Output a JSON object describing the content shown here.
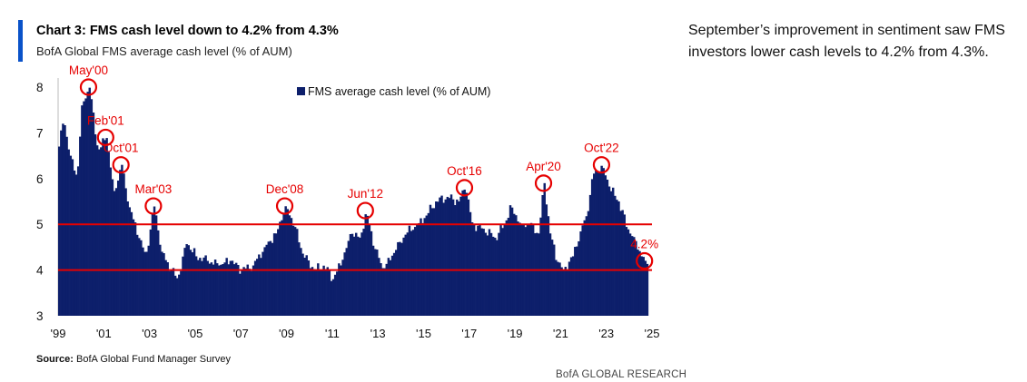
{
  "header": {
    "title": "Chart 3: FMS cash level down to 4.2% from 4.3%",
    "subtitle": "BofA Global FMS average cash level (% of AUM)"
  },
  "side_note": "September’s improvement in sentiment saw FMS investors lower cash levels to 4.2% from 4.3%.",
  "source": {
    "label": "Source:",
    "text": " BofA Global Fund Manager Survey"
  },
  "footer": "BofA GLOBAL RESEARCH",
  "colors": {
    "bars": "#0d1f6b",
    "lines": "#e60000",
    "accent": "#0a52c9"
  },
  "chart_data": {
    "type": "bar",
    "legend": {
      "label": "FMS average cash level (% of AUM)",
      "position": "top-center"
    },
    "xlabel": "",
    "ylabel": "",
    "ylim": [
      3,
      8
    ],
    "xlim": [
      1999.0,
      2024.75
    ],
    "y_ticks": [
      "3",
      "4",
      "5",
      "6",
      "7",
      "8"
    ],
    "x_ticks": [
      {
        "label": "'99",
        "x": 1999
      },
      {
        "label": "'01",
        "x": 2001
      },
      {
        "label": "'03",
        "x": 2003
      },
      {
        "label": "'05",
        "x": 2005
      },
      {
        "label": "'07",
        "x": 2007
      },
      {
        "label": "'09",
        "x": 2009
      },
      {
        "label": "'11",
        "x": 2011
      },
      {
        "label": "'13",
        "x": 2013
      },
      {
        "label": "'15",
        "x": 2015
      },
      {
        "label": "'17",
        "x": 2017
      },
      {
        "label": "'19",
        "x": 2019
      },
      {
        "label": "'21",
        "x": 2021
      },
      {
        "label": "'23",
        "x": 2023
      },
      {
        "label": "'25",
        "x": 2025
      }
    ],
    "reference_lines": [
      5.0,
      4.0
    ],
    "keypoints": [
      [
        1999.0,
        6.7
      ],
      [
        1999.2,
        7.3
      ],
      [
        1999.5,
        6.5
      ],
      [
        1999.8,
        6.0
      ],
      [
        2000.0,
        7.6
      ],
      [
        2000.33,
        8.0
      ],
      [
        2000.7,
        6.6
      ],
      [
        2001.08,
        6.9
      ],
      [
        2001.4,
        5.7
      ],
      [
        2001.75,
        6.3
      ],
      [
        2002.0,
        5.5
      ],
      [
        2002.5,
        4.7
      ],
      [
        2002.8,
        4.3
      ],
      [
        2003.17,
        5.4
      ],
      [
        2003.5,
        4.4
      ],
      [
        2003.9,
        4.0
      ],
      [
        2004.2,
        3.8
      ],
      [
        2004.6,
        4.6
      ],
      [
        2005.0,
        4.3
      ],
      [
        2005.5,
        4.2
      ],
      [
        2006.0,
        4.1
      ],
      [
        2006.5,
        4.2
      ],
      [
        2007.0,
        4.0
      ],
      [
        2007.5,
        4.1
      ],
      [
        2008.0,
        4.5
      ],
      [
        2008.5,
        4.8
      ],
      [
        2008.92,
        5.4
      ],
      [
        2009.3,
        5.0
      ],
      [
        2009.7,
        4.3
      ],
      [
        2010.2,
        4.0
      ],
      [
        2010.6,
        4.1
      ],
      [
        2011.0,
        3.8
      ],
      [
        2011.4,
        4.2
      ],
      [
        2011.8,
        4.8
      ],
      [
        2012.2,
        4.7
      ],
      [
        2012.45,
        5.3
      ],
      [
        2012.8,
        4.5
      ],
      [
        2013.2,
        4.0
      ],
      [
        2013.7,
        4.4
      ],
      [
        2014.2,
        4.8
      ],
      [
        2014.7,
        5.0
      ],
      [
        2015.1,
        5.2
      ],
      [
        2015.5,
        5.5
      ],
      [
        2016.0,
        5.6
      ],
      [
        2016.5,
        5.5
      ],
      [
        2016.79,
        5.8
      ],
      [
        2017.1,
        5.0
      ],
      [
        2017.6,
        4.9
      ],
      [
        2018.1,
        4.7
      ],
      [
        2018.5,
        5.0
      ],
      [
        2018.8,
        5.4
      ],
      [
        2019.2,
        5.0
      ],
      [
        2019.6,
        5.0
      ],
      [
        2020.0,
        4.8
      ],
      [
        2020.25,
        5.9
      ],
      [
        2020.5,
        4.8
      ],
      [
        2020.8,
        4.2
      ],
      [
        2021.1,
        4.0
      ],
      [
        2021.5,
        4.3
      ],
      [
        2021.8,
        4.8
      ],
      [
        2022.1,
        5.2
      ],
      [
        2022.4,
        6.1
      ],
      [
        2022.79,
        6.3
      ],
      [
        2023.1,
        5.8
      ],
      [
        2023.5,
        5.5
      ],
      [
        2023.9,
        4.9
      ],
      [
        2024.2,
        4.7
      ],
      [
        2024.5,
        4.3
      ],
      [
        2024.67,
        4.2
      ]
    ],
    "callouts": [
      {
        "label": "May'00",
        "x": 2000.33,
        "y": 8.0,
        "label_position": "above"
      },
      {
        "label": "Feb'01",
        "x": 2001.08,
        "y": 6.9,
        "label_position": "above"
      },
      {
        "label": "Oct'01",
        "x": 2001.75,
        "y": 6.3,
        "label_position": "above"
      },
      {
        "label": "Mar'03",
        "x": 2003.17,
        "y": 5.4,
        "label_position": "above"
      },
      {
        "label": "Dec'08",
        "x": 2008.92,
        "y": 5.4,
        "label_position": "above"
      },
      {
        "label": "Jun'12",
        "x": 2012.45,
        "y": 5.3,
        "label_position": "above"
      },
      {
        "label": "Oct'16",
        "x": 2016.79,
        "y": 5.8,
        "label_position": "above"
      },
      {
        "label": "Apr'20",
        "x": 2020.25,
        "y": 5.9,
        "label_position": "above"
      },
      {
        "label": "Oct'22",
        "x": 2022.79,
        "y": 6.3,
        "label_position": "above"
      },
      {
        "label": "4.2%",
        "x": 2024.67,
        "y": 4.2,
        "label_position": "above"
      }
    ]
  }
}
